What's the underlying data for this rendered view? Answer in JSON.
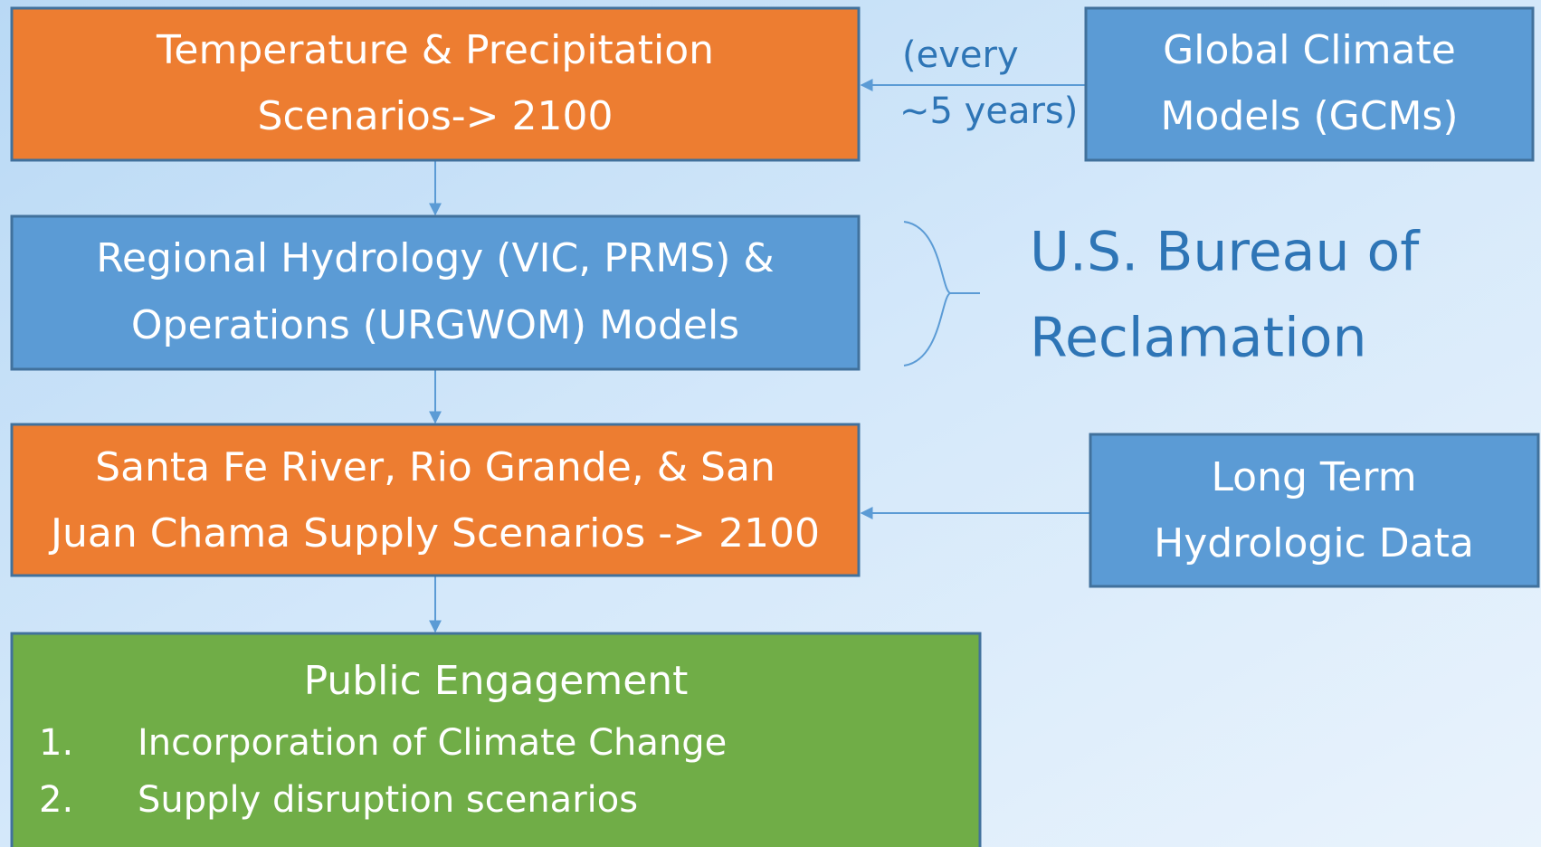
{
  "nodes": [
    {
      "lines": [
        "Temperature  & Precipitation",
        "Scenarios-> 2100"
      ]
    },
    {
      "lines": [
        "Regional Hydrology (VIC, PRMS) &",
        "Operations (URGWOM) Models"
      ]
    },
    {
      "lines": [
        "Santa Fe River, Rio Grande, & San",
        "Juan Chama Supply Scenarios -> 2100"
      ]
    },
    {
      "lines": [
        "Global Climate",
        "Models (GCMs)"
      ]
    },
    {
      "lines": [
        "Long Term",
        "Hydrologic Data"
      ]
    }
  ],
  "annotation": {
    "lines": [
      "(every",
      "~5 years)"
    ]
  },
  "agency": {
    "lines": [
      "U.S. Bureau of",
      "Reclamation"
    ]
  },
  "engagement": {
    "title": "Public Engagement",
    "items": [
      {
        "number": "1.",
        "text": "Incorporation of Climate Change"
      },
      {
        "number": "2.",
        "text": "Supply disruption scenarios"
      }
    ]
  }
}
